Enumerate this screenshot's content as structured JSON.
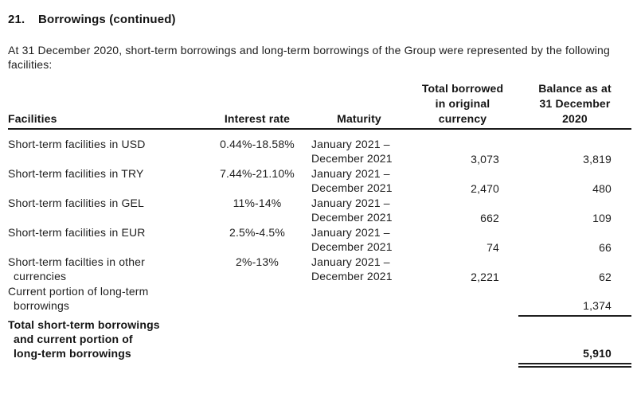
{
  "document": {
    "section_number": "21.",
    "section_title": "Borrowings (continued)",
    "intro": "At 31 December 2020, short-term borrowings and long-term borrowings of the Group were represented by the following facilities:"
  },
  "table": {
    "headers": {
      "facilities": "Facilities",
      "interest_rate": "Interest rate",
      "maturity": "Maturity",
      "total_borrowed": "Total borrowed\nin original\ncurrency",
      "balance": "Balance as at\n31 December\n2020"
    },
    "rows": [
      {
        "facility": "Short-term facilities in USD",
        "rate": "0.44%-18.58%",
        "maturity_line1": "January 2021 –",
        "maturity_line2": "December 2021",
        "borrowed": "3,073",
        "balance": "3,819"
      },
      {
        "facility": "Short-term facilities in TRY",
        "rate": "7.44%-21.10%",
        "maturity_line1": "January 2021 –",
        "maturity_line2": "December 2021",
        "borrowed": "2,470",
        "balance": "480"
      },
      {
        "facility": "Short-term facilities in GEL",
        "rate": "11%-14%",
        "maturity_line1": "January 2021 –",
        "maturity_line2": "December 2021",
        "borrowed": "662",
        "balance": "109"
      },
      {
        "facility": "Short-term facilities in EUR",
        "rate": "2.5%-4.5%",
        "maturity_line1": "January 2021 –",
        "maturity_line2": "December 2021",
        "borrowed": "74",
        "balance": "66"
      },
      {
        "facility": "Short-term facilties in other",
        "facility_line2": "currencies",
        "rate": "2%-13%",
        "maturity_line1": "January 2021 –",
        "maturity_line2": "December 2021",
        "borrowed": "2,221",
        "balance": "62"
      }
    ],
    "current_portion": {
      "label_line1": "Current portion of long-term",
      "label_line2": "borrowings",
      "balance": "1,374"
    },
    "total": {
      "label_line1": "Total short-term borrowings",
      "label_line2": "and current portion of",
      "label_line3": "long-term borrowings",
      "balance": "5,910"
    }
  }
}
